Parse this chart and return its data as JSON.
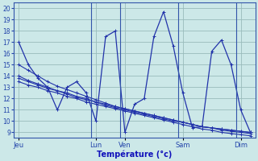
{
  "background_color": "#cce8e8",
  "grid_color": "#99bbbb",
  "line_color": "#2233aa",
  "xlabel": "Température (°c)",
  "xlabel_color": "#1111bb",
  "tick_label_color": "#2244aa",
  "ylim": [
    8.5,
    20.5
  ],
  "yticks": [
    9,
    10,
    11,
    12,
    13,
    14,
    15,
    16,
    17,
    18,
    19,
    20
  ],
  "x_day_labels": [
    "Jeu",
    "Lun",
    "Ven",
    "Sam",
    "Dim"
  ],
  "x_day_positions": [
    0,
    8,
    11,
    17,
    23
  ],
  "n_points": 25,
  "xlim": [
    -0.5,
    24.5
  ],
  "wave_series": [
    17,
    15,
    13.8,
    13.0,
    11.0,
    13.0,
    13.5,
    12.5,
    10.0,
    17.5,
    18.0,
    9.0,
    11.5,
    12.0,
    17.5,
    19.7,
    16.7,
    12.5,
    9.4,
    9.5,
    16.2,
    17.2,
    15.0,
    11.0,
    9.0
  ],
  "flat_lines": [
    [
      15.0,
      14.5,
      14.0,
      13.5,
      13.1,
      12.8,
      12.5,
      12.2,
      11.9,
      11.6,
      11.3,
      11.1,
      10.9,
      10.7,
      10.5,
      10.3,
      10.1,
      9.9,
      9.7,
      9.5,
      9.4,
      9.3,
      9.2,
      9.1,
      9.0
    ],
    [
      14.0,
      13.6,
      13.3,
      13.0,
      12.7,
      12.5,
      12.2,
      12.0,
      11.7,
      11.5,
      11.3,
      11.1,
      10.9,
      10.7,
      10.5,
      10.3,
      10.1,
      9.9,
      9.7,
      9.5,
      9.4,
      9.3,
      9.2,
      9.1,
      9.0
    ],
    [
      13.8,
      13.5,
      13.2,
      12.9,
      12.7,
      12.4,
      12.1,
      11.9,
      11.7,
      11.4,
      11.2,
      11.0,
      10.8,
      10.6,
      10.4,
      10.2,
      10.0,
      9.9,
      9.7,
      9.5,
      9.4,
      9.2,
      9.1,
      9.0,
      8.9
    ],
    [
      13.5,
      13.2,
      13.0,
      12.7,
      12.5,
      12.2,
      12.0,
      11.7,
      11.5,
      11.3,
      11.1,
      10.9,
      10.7,
      10.5,
      10.3,
      10.1,
      9.9,
      9.7,
      9.5,
      9.3,
      9.2,
      9.0,
      8.9,
      8.8,
      8.7
    ]
  ]
}
